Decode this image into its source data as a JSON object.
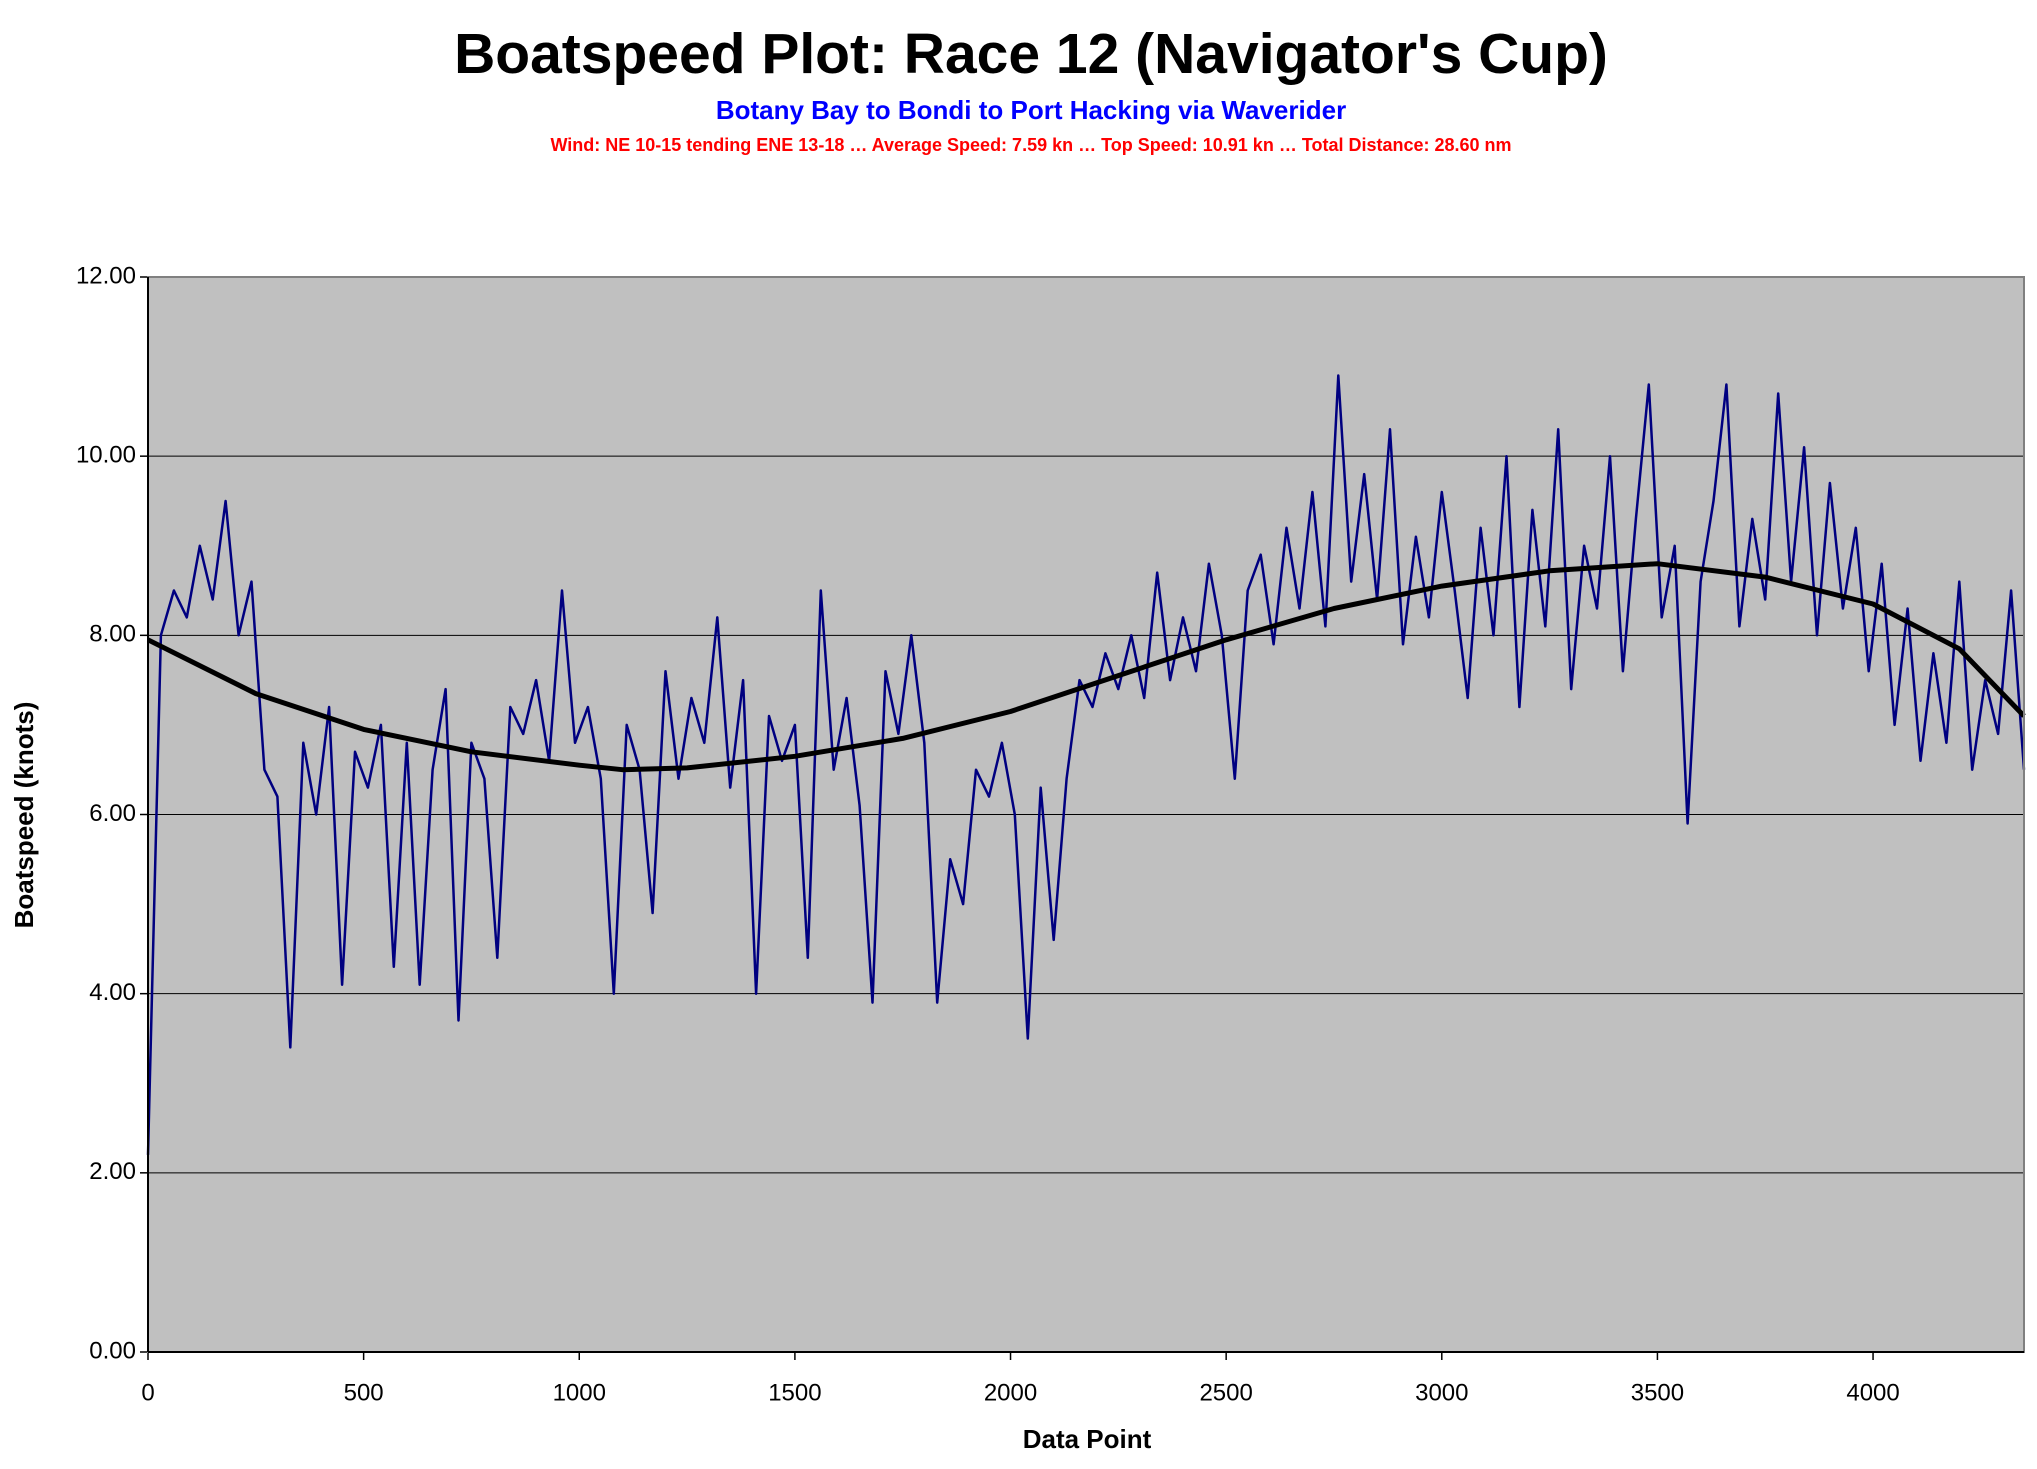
{
  "chart_data": {
    "type": "line",
    "title": "Boatspeed Plot: Race 12 (Navigator's Cup)",
    "subtitle": "Botany Bay to Bondi to Port Hacking via Waverider",
    "annotation": "Wind: NE 10-15 tending ENE 13-18 … Average Speed: 7.59 kn … Top Speed: 10.91 kn … Total Distance: 28.60 nm",
    "x_label": "Data Point",
    "y_label": "Boatspeed (knots)",
    "xlim": [
      0,
      4350
    ],
    "ylim": [
      0,
      12
    ],
    "xticks": [
      0,
      500,
      1000,
      1500,
      2000,
      2500,
      3000,
      3500,
      4000
    ],
    "yticks": [
      {
        "value": 0,
        "label": "0.00"
      },
      {
        "value": 2,
        "label": "2.00"
      },
      {
        "value": 4,
        "label": "4.00"
      },
      {
        "value": 6,
        "label": "6.00"
      },
      {
        "value": 8,
        "label": "8.00"
      },
      {
        "value": 10,
        "label": "10.00"
      },
      {
        "value": 12,
        "label": "12.00"
      }
    ],
    "grid": true,
    "series": [
      {
        "color": "#000080",
        "x": [
          0,
          30,
          60,
          90,
          120,
          150,
          180,
          210,
          240,
          270,
          300,
          330,
          360,
          390,
          420,
          450,
          480,
          510,
          540,
          570,
          600,
          630,
          660,
          690,
          720,
          750,
          780,
          810,
          840,
          870,
          900,
          930,
          960,
          990,
          1020,
          1050,
          1080,
          1110,
          1140,
          1170,
          1200,
          1230,
          1260,
          1290,
          1320,
          1350,
          1380,
          1410,
          1440,
          1470,
          1500,
          1530,
          1560,
          1590,
          1620,
          1650,
          1680,
          1710,
          1740,
          1770,
          1800,
          1830,
          1860,
          1890,
          1920,
          1950,
          1980,
          2010,
          2040,
          2070,
          2100,
          2130,
          2160,
          2190,
          2220,
          2250,
          2280,
          2310,
          2340,
          2370,
          2400,
          2430,
          2460,
          2490,
          2520,
          2550,
          2580,
          2610,
          2640,
          2670,
          2700,
          2730,
          2760,
          2790,
          2820,
          2850,
          2880,
          2910,
          2940,
          2970,
          3000,
          3030,
          3060,
          3090,
          3120,
          3150,
          3180,
          3210,
          3240,
          3270,
          3300,
          3330,
          3360,
          3390,
          3420,
          3450,
          3480,
          3510,
          3540,
          3570,
          3600,
          3630,
          3660,
          3690,
          3720,
          3750,
          3780,
          3810,
          3840,
          3870,
          3900,
          3930,
          3960,
          3990,
          4020,
          4050,
          4080,
          4110,
          4140,
          4170,
          4200,
          4230,
          4260,
          4290,
          4320,
          4350
        ],
        "values": [
          2.2,
          8.0,
          8.5,
          8.2,
          9.0,
          8.4,
          9.5,
          8.0,
          8.6,
          6.5,
          6.2,
          3.4,
          6.8,
          6.0,
          7.2,
          4.1,
          6.7,
          6.3,
          7.0,
          4.3,
          6.8,
          4.1,
          6.5,
          7.4,
          3.7,
          6.8,
          6.4,
          4.4,
          7.2,
          6.9,
          7.5,
          6.6,
          8.5,
          6.8,
          7.2,
          6.4,
          4.0,
          7.0,
          6.5,
          4.9,
          7.6,
          6.4,
          7.3,
          6.8,
          8.2,
          6.3,
          7.5,
          4.0,
          7.1,
          6.6,
          7.0,
          4.4,
          8.5,
          6.5,
          7.3,
          6.1,
          3.9,
          7.6,
          6.9,
          8.0,
          6.8,
          3.9,
          5.5,
          5.0,
          6.5,
          6.2,
          6.8,
          6.0,
          3.5,
          6.3,
          4.6,
          6.4,
          7.5,
          7.2,
          7.8,
          7.4,
          8.0,
          7.3,
          8.7,
          7.5,
          8.2,
          7.6,
          8.8,
          8.0,
          6.4,
          8.5,
          8.9,
          7.9,
          9.2,
          8.3,
          9.6,
          8.1,
          10.9,
          8.6,
          9.8,
          8.4,
          10.3,
          7.9,
          9.1,
          8.2,
          9.6,
          8.5,
          7.3,
          9.2,
          8.0,
          10.0,
          7.2,
          9.4,
          8.1,
          10.3,
          7.4,
          9.0,
          8.3,
          10.0,
          7.6,
          9.3,
          10.8,
          8.2,
          9.0,
          5.9,
          8.6,
          9.5,
          10.8,
          8.1,
          9.3,
          8.4,
          10.7,
          8.6,
          10.1,
          8.0,
          9.7,
          8.3,
          9.2,
          7.6,
          8.8,
          7.0,
          8.3,
          6.6,
          7.8,
          6.8,
          8.6,
          6.5,
          7.5,
          6.9,
          8.5,
          6.5
        ]
      },
      {
        "color": "#000000",
        "x": [
          0,
          250,
          500,
          750,
          1000,
          1100,
          1250,
          1500,
          1750,
          2000,
          2250,
          2500,
          2750,
          3000,
          3250,
          3500,
          3750,
          4000,
          4200,
          4350
        ],
        "values": [
          7.95,
          7.35,
          6.95,
          6.7,
          6.55,
          6.5,
          6.52,
          6.65,
          6.85,
          7.15,
          7.55,
          7.95,
          8.3,
          8.55,
          8.72,
          8.8,
          8.65,
          8.35,
          7.85,
          7.1
        ]
      }
    ]
  }
}
